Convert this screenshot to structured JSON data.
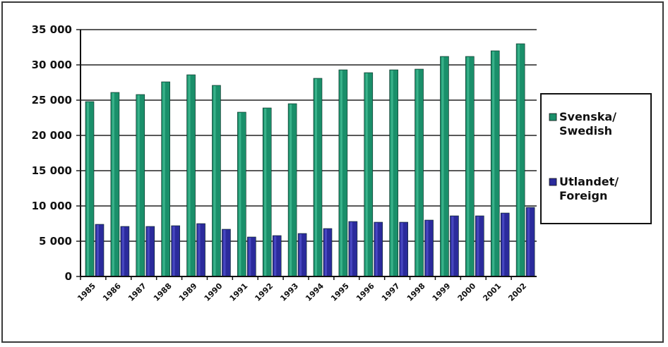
{
  "chart_data": {
    "type": "bar",
    "categories": [
      "1985",
      "1986",
      "1987",
      "1988",
      "1989",
      "1990",
      "1991",
      "1992",
      "1993",
      "1994",
      "1995",
      "1996",
      "1997",
      "1998",
      "1999",
      "2000",
      "2001",
      "2002"
    ],
    "series": [
      {
        "name": "Svenska/ Swedish",
        "legend_lines": [
          "Svenska/",
          "Swedish"
        ],
        "color": "#1a8f6a",
        "values": [
          24800,
          26100,
          25800,
          27600,
          28600,
          27100,
          23300,
          23900,
          24500,
          28100,
          29300,
          28900,
          29300,
          29400,
          31200,
          31200,
          32000,
          33000
        ]
      },
      {
        "name": "Utlandet/ Foreign",
        "legend_lines": [
          "Utlandet/",
          "Foreign"
        ],
        "color": "#2b2b9c",
        "values": [
          7400,
          7100,
          7100,
          7200,
          7500,
          6700,
          5600,
          5800,
          6100,
          6800,
          7800,
          7700,
          7700,
          8000,
          8600,
          8600,
          9000,
          9800
        ]
      }
    ],
    "y_ticks": [
      "0",
      "5 000",
      "10 000",
      "15 000",
      "20 000",
      "25 000",
      "30 000",
      "35 000"
    ],
    "y_tick_values": [
      0,
      5000,
      10000,
      15000,
      20000,
      25000,
      30000,
      35000
    ],
    "ylim": [
      0,
      35000
    ],
    "grid": true,
    "legend_position": "right"
  }
}
